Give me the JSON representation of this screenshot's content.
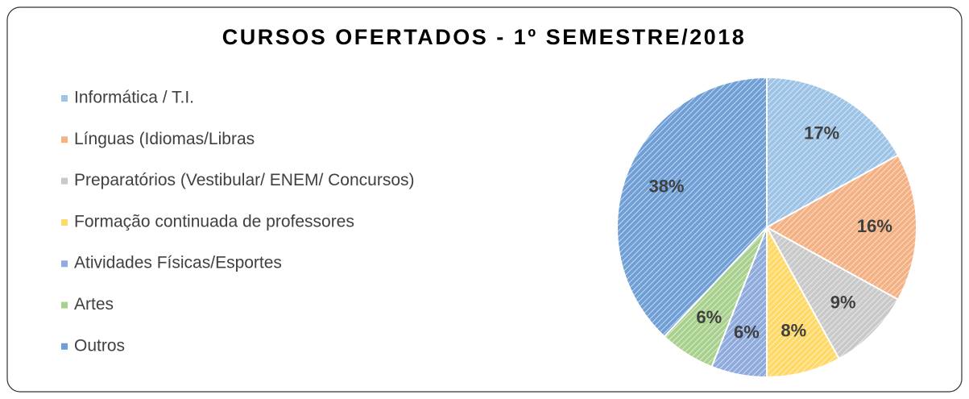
{
  "chart_data": {
    "type": "pie",
    "title": "CURSOS OFERTADOS - 1º SEMESTRE/2018",
    "categories": [
      "Informática / T.I.",
      "Línguas (Idiomas/Libras",
      "Preparatórios (Vestibular/ ENEM/ Concursos)",
      "Formação continuada de professores",
      "Atividades Físicas/Esportes",
      "Artes",
      "Outros"
    ],
    "values": [
      17,
      16,
      9,
      8,
      6,
      6,
      38
    ],
    "value_labels": [
      "17%",
      "16%",
      "9%",
      "8%",
      "6%",
      "6%",
      "38%"
    ],
    "colors": [
      "#9dc3e6",
      "#f4b183",
      "#c9c9c9",
      "#ffd966",
      "#8faadc",
      "#a9d18e",
      "#6f9fd6"
    ],
    "legend": "left"
  }
}
